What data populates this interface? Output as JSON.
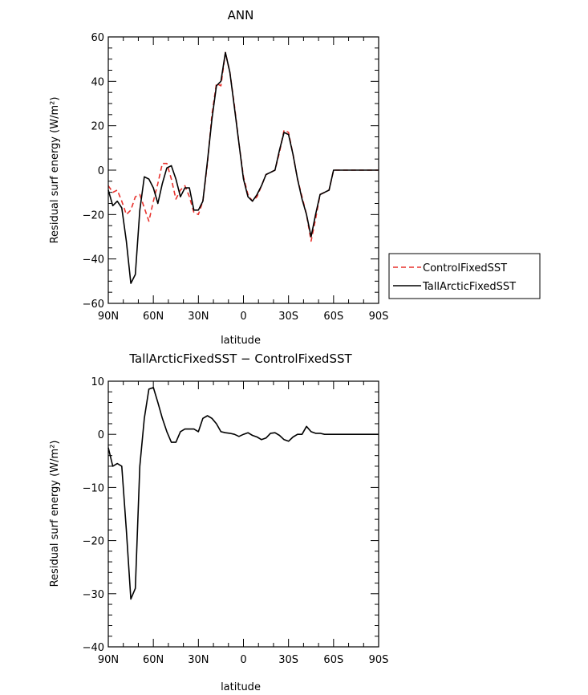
{
  "chart_data": [
    {
      "type": "line",
      "title": "ANN",
      "xlabel": "latitude",
      "ylabel": "Residual surf energy (W/m²)",
      "xlim": [
        90,
        -90
      ],
      "ylim": [
        -60,
        60
      ],
      "xticks": [
        90,
        60,
        30,
        0,
        -30,
        -60,
        -90
      ],
      "xtick_labels": [
        "90N",
        "60N",
        "30N",
        "0",
        "30S",
        "60S",
        "90S"
      ],
      "yticks": [
        60,
        40,
        20,
        0,
        -20,
        -40,
        -60
      ],
      "ytick_labels": [
        "60",
        "40",
        "20",
        "0",
        "−20",
        "−40",
        "−60"
      ],
      "grid": false,
      "legend_position": "outside-right",
      "series": [
        {
          "name": "ControlFixedSST",
          "color": "#e8322d",
          "dash": "dashed",
          "x": [
            90,
            87,
            84,
            81,
            78,
            75,
            72,
            69,
            66,
            63,
            60,
            57,
            54,
            51,
            48,
            45,
            42,
            39,
            36,
            33,
            30,
            27,
            24,
            21,
            18,
            15,
            12,
            9,
            6,
            3,
            0,
            -3,
            -6,
            -9,
            -12,
            -15,
            -18,
            -21,
            -24,
            -27,
            -30,
            -33,
            -36,
            -39,
            -42,
            -45,
            -48,
            -51,
            -54,
            -57,
            -60,
            -63,
            -66,
            -69,
            -72,
            -75,
            -78,
            -81,
            -84,
            -87,
            -90
          ],
          "y": [
            -7,
            -10,
            -9,
            -14,
            -20,
            -18,
            -12,
            -11,
            -17,
            -23,
            -14,
            -6,
            3,
            3,
            -4,
            -13,
            -9,
            -7,
            -12,
            -19,
            -20,
            -14,
            3,
            25,
            39,
            38,
            53,
            44,
            29,
            12,
            -3,
            -11,
            -14,
            -12,
            -7,
            -2,
            -1,
            0,
            8,
            18,
            17,
            7,
            -4,
            -12,
            -20,
            -32,
            -22,
            -11,
            -10,
            -9,
            0,
            0,
            0,
            0,
            0,
            0,
            0,
            0,
            0,
            0,
            0
          ]
        },
        {
          "name": "TallArcticFixedSST",
          "color": "#000000",
          "dash": "solid",
          "x": [
            90,
            87,
            84,
            81,
            78,
            75,
            72,
            69,
            66,
            63,
            60,
            57,
            54,
            51,
            48,
            45,
            42,
            39,
            36,
            33,
            30,
            27,
            24,
            21,
            18,
            15,
            12,
            9,
            6,
            3,
            0,
            -3,
            -6,
            -9,
            -12,
            -15,
            -18,
            -21,
            -24,
            -27,
            -30,
            -33,
            -36,
            -39,
            -42,
            -45,
            -48,
            -51,
            -54,
            -57,
            -60,
            -63,
            -66,
            -69,
            -72,
            -75,
            -78,
            -81,
            -84,
            -87,
            -90
          ],
          "y": [
            -9,
            -16,
            -14,
            -17,
            -32,
            -51,
            -47,
            -18,
            -3,
            -4,
            -8,
            -15,
            -6,
            1,
            2,
            -4,
            -12,
            -8,
            -8,
            -18,
            -18,
            -14,
            4,
            23,
            38,
            40,
            53,
            44,
            28,
            12,
            -4,
            -12,
            -14,
            -11,
            -7,
            -2,
            -1,
            0,
            9,
            17,
            16,
            7,
            -4,
            -13,
            -20,
            -30,
            -20,
            -11,
            -10,
            -9,
            0,
            0,
            0,
            0,
            0,
            0,
            0,
            0,
            0,
            0,
            0
          ]
        }
      ]
    },
    {
      "type": "line",
      "title": "TallArcticFixedSST − ControlFixedSST",
      "xlabel": "latitude",
      "ylabel": "Residual surf energy (W/m²)",
      "xlim": [
        90,
        -90
      ],
      "ylim": [
        -40,
        10
      ],
      "xticks": [
        90,
        60,
        30,
        0,
        -30,
        -60,
        -90
      ],
      "xtick_labels": [
        "90N",
        "60N",
        "30N",
        "0",
        "30S",
        "60S",
        "90S"
      ],
      "yticks": [
        10,
        0,
        -10,
        -20,
        -30,
        -40
      ],
      "ytick_labels": [
        "10",
        "0",
        "−10",
        "−20",
        "−30",
        "−40"
      ],
      "grid": false,
      "series": [
        {
          "color": "#000000",
          "dash": "solid",
          "x": [
            90,
            87,
            84,
            81,
            78,
            75,
            72,
            69,
            66,
            63,
            60,
            57,
            54,
            51,
            48,
            45,
            42,
            39,
            36,
            33,
            30,
            27,
            24,
            21,
            18,
            15,
            12,
            9,
            6,
            3,
            0,
            -3,
            -6,
            -9,
            -12,
            -15,
            -18,
            -21,
            -24,
            -27,
            -30,
            -33,
            -36,
            -39,
            -42,
            -45,
            -48,
            -51,
            -54,
            -57,
            -60,
            -63,
            -66,
            -69,
            -72,
            -75,
            -78,
            -81,
            -84,
            -87,
            -90
          ],
          "y": [
            -2.5,
            -6,
            -5.5,
            -6,
            -18,
            -31,
            -29,
            -6,
            3,
            8.5,
            8.8,
            6,
            3,
            0.5,
            -1.5,
            -1.5,
            0.5,
            1,
            1,
            1,
            0.5,
            3,
            3.5,
            3,
            2,
            0.5,
            0.3,
            0.2,
            0,
            -0.4,
            0,
            0.3,
            -0.2,
            -0.5,
            -1,
            -0.7,
            0.2,
            0.3,
            -0.2,
            -1,
            -1.3,
            -0.5,
            0,
            0,
            1.5,
            0.5,
            0.2,
            0.2,
            0,
            0,
            0,
            0,
            0,
            0,
            0,
            0,
            0,
            0,
            0,
            0,
            0
          ]
        }
      ]
    }
  ]
}
